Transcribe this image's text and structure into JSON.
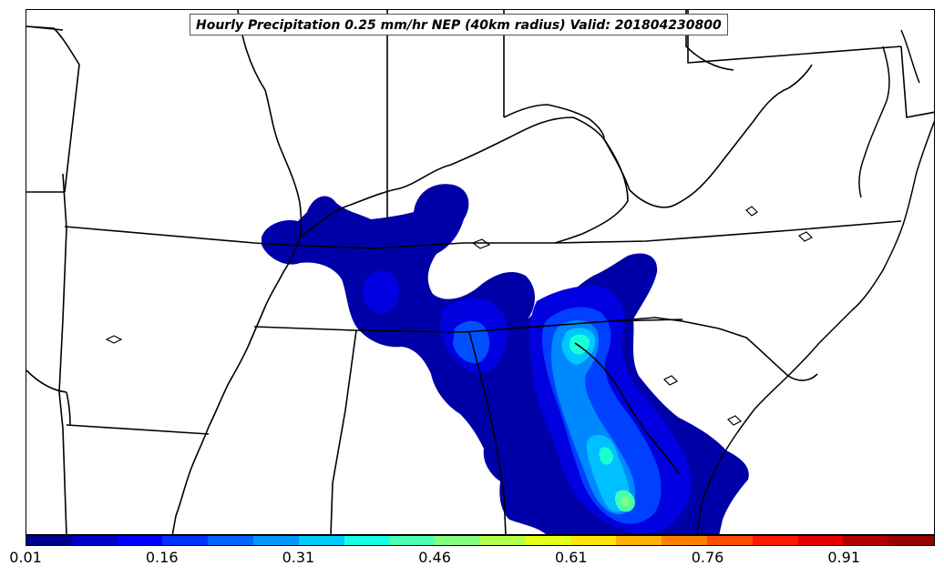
{
  "map": {
    "title": "Hourly Precipitation 0.25 mm/hr NEP (40km radius) Valid: 201804230800",
    "field": "precipitation-probability"
  },
  "colorbar": {
    "colors": [
      "#00008f",
      "#0000c8",
      "#0000ff",
      "#0033ff",
      "#0066ff",
      "#0099ff",
      "#00ccff",
      "#19ffe6",
      "#4cffb2",
      "#80ff80",
      "#b2ff4c",
      "#e6ff19",
      "#ffe600",
      "#ffb200",
      "#ff8000",
      "#ff4c00",
      "#ff1900",
      "#e60000",
      "#b20000",
      "#990000"
    ],
    "tick_labels": [
      "0.01",
      "0.16",
      "0.31",
      "0.46",
      "0.61",
      "0.76",
      "0.91"
    ]
  }
}
